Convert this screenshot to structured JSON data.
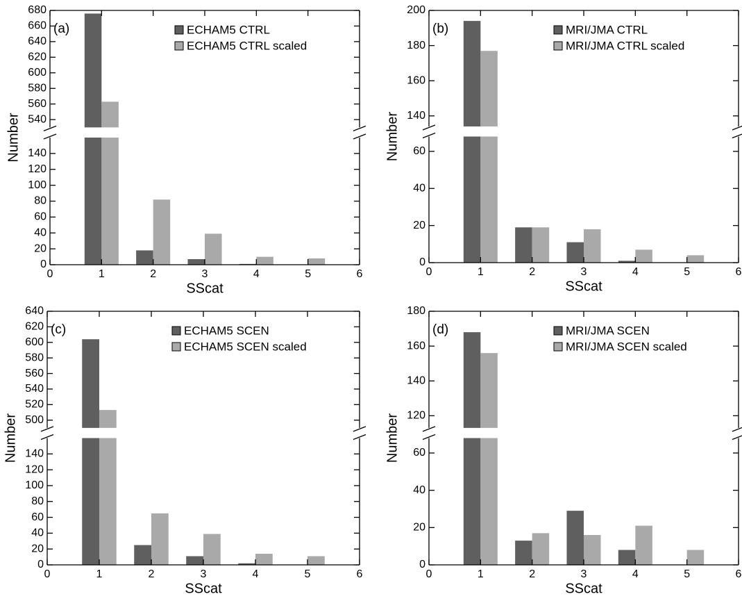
{
  "chart_data": [
    {
      "type": "bar",
      "panel_label": "(a)",
      "x_label": "SScat",
      "y_label": "Number",
      "legend": "upper right",
      "x": [
        1,
        2,
        3,
        4,
        5
      ],
      "xlim": [
        0,
        6
      ],
      "xticks": [
        0,
        1,
        2,
        3,
        4,
        5,
        6
      ],
      "ylim_lower": [
        0,
        160
      ],
      "yticks_lower": [
        0,
        20,
        40,
        60,
        80,
        100,
        120,
        140
      ],
      "ylim_upper": [
        530,
        680
      ],
      "yticks_upper": [
        540,
        560,
        580,
        600,
        620,
        640,
        660,
        680
      ],
      "series": [
        {
          "name": "ECHAM5 CTRL",
          "color": "#5f5f5f",
          "values": [
            676,
            18,
            7,
            1,
            0
          ]
        },
        {
          "name": "ECHAM5 CTRL scaled",
          "color": "#a9a9a9",
          "values": [
            563,
            82,
            39,
            10,
            8
          ]
        }
      ]
    },
    {
      "type": "bar",
      "panel_label": "(b)",
      "x_label": "SScat",
      "y_label": "Number",
      "legend": "upper right",
      "x": [
        1,
        2,
        3,
        4,
        5
      ],
      "xlim": [
        0,
        6
      ],
      "xticks": [
        0,
        1,
        2,
        3,
        4,
        5,
        6
      ],
      "ylim_lower": [
        0,
        68
      ],
      "yticks_lower": [
        0,
        20,
        40,
        60
      ],
      "ylim_upper": [
        134,
        200
      ],
      "yticks_upper": [
        140,
        160,
        180,
        200
      ],
      "series": [
        {
          "name": "MRI/JMA CTRL",
          "color": "#5f5f5f",
          "values": [
            194,
            19,
            11,
            1,
            0
          ]
        },
        {
          "name": "MRI/JMA CTRL scaled",
          "color": "#a9a9a9",
          "values": [
            177,
            19,
            18,
            7,
            4
          ]
        }
      ]
    },
    {
      "type": "bar",
      "panel_label": "(c)",
      "x_label": "SScat",
      "y_label": "Number",
      "legend": "upper right",
      "x": [
        1,
        2,
        3,
        4,
        5
      ],
      "xlim": [
        0,
        6
      ],
      "xticks": [
        0,
        1,
        2,
        3,
        4,
        5,
        6
      ],
      "ylim_lower": [
        0,
        160
      ],
      "yticks_lower": [
        0,
        20,
        40,
        60,
        80,
        100,
        120,
        140
      ],
      "ylim_upper": [
        490,
        640
      ],
      "yticks_upper": [
        500,
        520,
        540,
        560,
        580,
        600,
        620,
        640
      ],
      "series": [
        {
          "name": "ECHAM5 SCEN",
          "color": "#5f5f5f",
          "values": [
            604,
            25,
            11,
            2,
            0
          ]
        },
        {
          "name": "ECHAM5 SCEN scaled",
          "color": "#a9a9a9",
          "values": [
            513,
            65,
            39,
            14,
            11
          ]
        }
      ]
    },
    {
      "type": "bar",
      "panel_label": "(d)",
      "x_label": "SScat",
      "y_label": "Number",
      "legend": "upper right",
      "x": [
        1,
        2,
        3,
        4,
        5
      ],
      "xlim": [
        0,
        6
      ],
      "xticks": [
        0,
        1,
        2,
        3,
        4,
        5,
        6
      ],
      "ylim_lower": [
        0,
        68
      ],
      "yticks_lower": [
        0,
        20,
        40,
        60
      ],
      "ylim_upper": [
        113,
        180
      ],
      "yticks_upper": [
        120,
        140,
        160,
        180
      ],
      "series": [
        {
          "name": "MRI/JMA SCEN",
          "color": "#5f5f5f",
          "values": [
            168,
            13,
            29,
            8,
            0
          ]
        },
        {
          "name": "MRI/JMA SCEN scaled",
          "color": "#a9a9a9",
          "values": [
            156,
            17,
            16,
            21,
            8
          ]
        }
      ]
    }
  ]
}
